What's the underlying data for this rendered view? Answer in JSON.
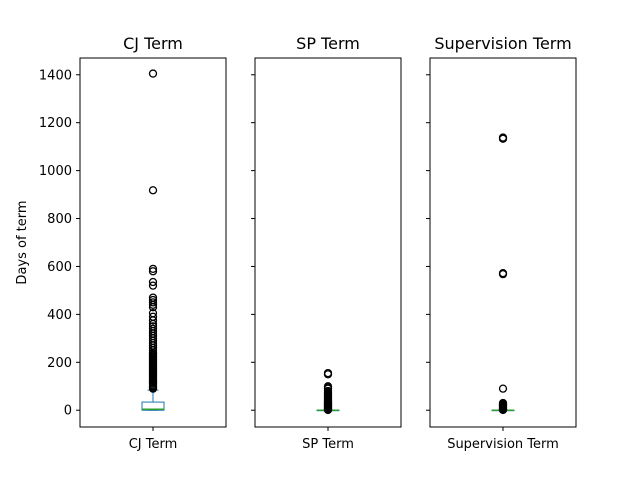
{
  "chart_data": {
    "type": "box",
    "ylabel": "Days of term",
    "ylim": [
      -70,
      1470
    ],
    "yticks": [
      0,
      200,
      400,
      600,
      800,
      1000,
      1200,
      1400
    ],
    "sharey": true,
    "colors": {
      "box": "#1f77b4",
      "median": "#2ca02c",
      "flier": "#000000",
      "axes": "#000000"
    },
    "panels": [
      {
        "title": "CJ Term",
        "xtick": "CJ Term",
        "box": {
          "q1": 0,
          "median": 4,
          "q3": 34,
          "whisker_low": 0,
          "whisker_high": 84
        },
        "outliers": [
          90,
          95,
          100,
          104,
          110,
          115,
          120,
          125,
          130,
          135,
          140,
          145,
          150,
          155,
          160,
          165,
          170,
          175,
          180,
          185,
          190,
          195,
          200,
          205,
          210,
          215,
          220,
          225,
          230,
          235,
          240,
          250,
          260,
          270,
          280,
          290,
          300,
          310,
          320,
          330,
          340,
          350,
          360,
          375,
          390,
          405,
          430,
          440,
          450,
          460,
          470,
          520,
          535,
          580,
          590,
          918,
          1405
        ]
      },
      {
        "title": "SP Term",
        "xtick": "SP Term",
        "box": {
          "q1": 0,
          "median": 0,
          "q3": 0,
          "whisker_low": 0,
          "whisker_high": 0
        },
        "outliers": [
          1,
          3,
          5,
          8,
          10,
          13,
          15,
          18,
          20,
          23,
          25,
          28,
          30,
          33,
          36,
          40,
          44,
          48,
          52,
          56,
          60,
          65,
          70,
          75,
          80,
          90,
          95,
          100,
          150,
          155
        ]
      },
      {
        "title": "Supervision Term",
        "xtick": "Supervision Term",
        "box": {
          "q1": 0,
          "median": 0,
          "q3": 0,
          "whisker_low": 0,
          "whisker_high": 0
        },
        "outliers": [
          1,
          3,
          5,
          8,
          10,
          14,
          18,
          22,
          26,
          30,
          90,
          568,
          572,
          1133,
          1138
        ]
      }
    ]
  }
}
